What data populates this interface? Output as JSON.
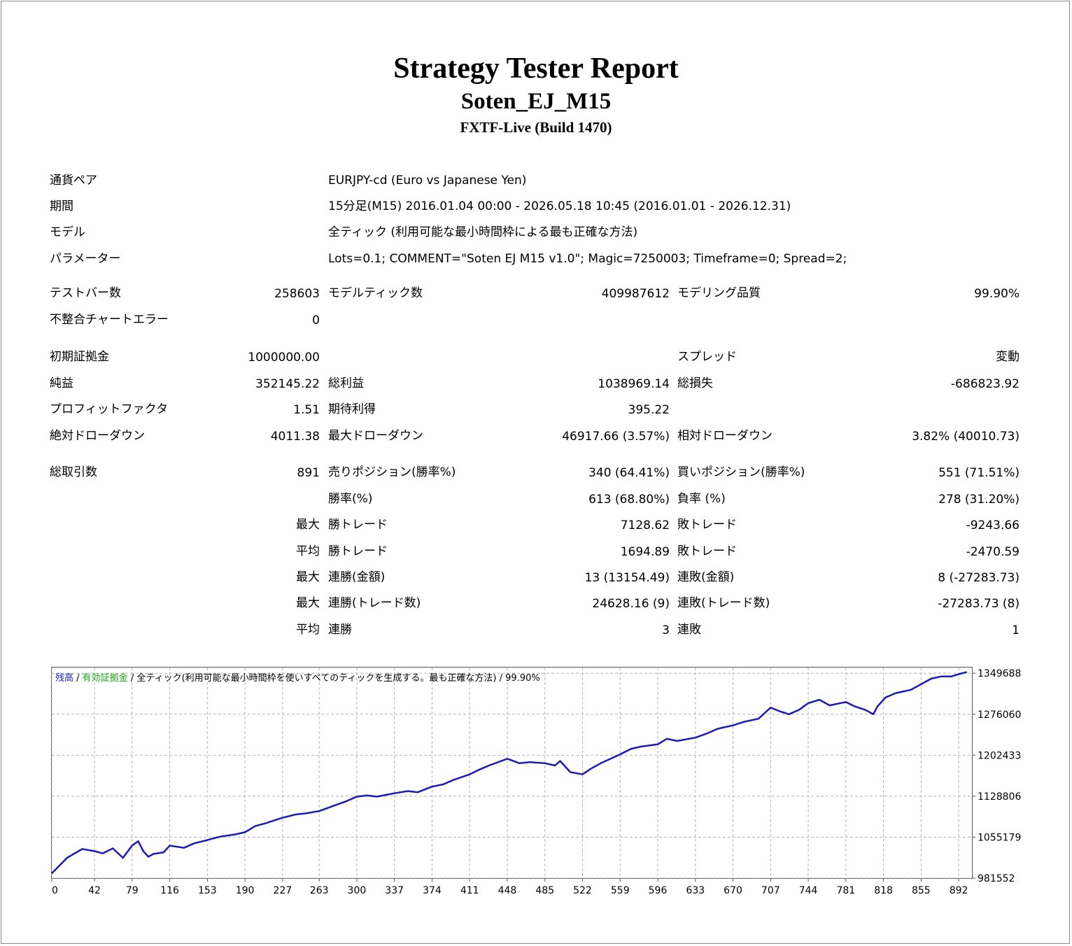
{
  "header": {
    "title": "Strategy Tester Report",
    "ea_name": "Soten_EJ_M15",
    "server": "FXTF-Live (Build 1470)"
  },
  "info": [
    {
      "label": "通貨ペア",
      "value": "EURJPY-cd (Euro vs Japanese Yen)"
    },
    {
      "label": "期間",
      "value": "15分足(M15) 2016.01.04 00:00 - 2026.05.18 10:45 (2016.01.01 - 2026.12.31)"
    },
    {
      "label": "モデル",
      "value": "全ティック (利用可能な最小時間枠による最も正確な方法)"
    },
    {
      "label": "パラメーター",
      "value": "Lots=0.1; COMMENT=\"Soten EJ M15 v1.0\"; Magic=7250003; Timeframe=0; Spread=2;"
    }
  ],
  "stats": {
    "bars_label": "テストバー数",
    "bars_value": "258603",
    "ticks_label": "モデルティック数",
    "ticks_value": "409987612",
    "quality_label": "モデリング品質",
    "quality_value": "99.90%",
    "mismatch_label": "不整合チャートエラー",
    "mismatch_value": "0",
    "deposit_label": "初期証拠金",
    "deposit_value": "1000000.00",
    "spread_label": "スプレッド",
    "spread_value": "変動",
    "net_label": "純益",
    "net_value": "352145.22",
    "gross_profit_label": "総利益",
    "gross_profit_value": "1038969.14",
    "gross_loss_label": "総損失",
    "gross_loss_value": "-686823.92",
    "pf_label": "プロフィットファクタ",
    "pf_value": "1.51",
    "expected_label": "期待利得",
    "expected_value": "395.22",
    "abs_dd_label": "絶対ドローダウン",
    "abs_dd_value": "4011.38",
    "max_dd_label": "最大ドローダウン",
    "max_dd_value": "46917.66 (3.57%)",
    "rel_dd_label": "相対ドローダウン",
    "rel_dd_value": "3.82% (40010.73)",
    "trades_label": "総取引数",
    "trades_value": "891",
    "short_label": "売りポジション(勝率%)",
    "short_value": "340 (64.41%)",
    "long_label": "買いポジション(勝率%)",
    "long_value": "551 (71.51%)",
    "win_rate_label": "勝率(%)",
    "win_rate_value": "613 (68.80%)",
    "loss_rate_label": "負率 (%)",
    "loss_rate_value": "278 (31.20%)",
    "max_prefix": "最大",
    "avg_prefix": "平均",
    "win_trade_label": "勝トレード",
    "loss_trade_label": "敗トレード",
    "max_win_value": "7128.62",
    "max_loss_value": "-9243.66",
    "avg_win_value": "1694.89",
    "avg_loss_value": "-2470.59",
    "consec_win_amount_label": "連勝(金額)",
    "consec_win_amount_value": "13 (13154.49)",
    "consec_loss_amount_label": "連敗(金額)",
    "consec_loss_amount_value": "8 (-27283.73)",
    "consec_win_count_label": "連勝(トレード数)",
    "consec_win_count_value": "24628.16 (9)",
    "consec_loss_count_label": "連敗(トレード数)",
    "consec_loss_count_value": "-27283.73 (8)",
    "avg_consec_win_label": "連勝",
    "avg_consec_win_value": "3",
    "avg_consec_loss_label": "連敗",
    "avg_consec_loss_value": "1"
  },
  "chart_data": {
    "type": "line",
    "legend": {
      "balance": "残高",
      "sep1": " / ",
      "margin": "有効証拠金",
      "sep2": " / ",
      "model": "全ティック(利用可能な最小時間枠を使いすべてのティックを生成する。最も正確な方法)",
      "sep3": " / ",
      "quality": "99.90%"
    },
    "colors": {
      "line": "#1a1ab4",
      "grid": "#b4b4b4"
    },
    "xlim": [
      0,
      905
    ],
    "ylim": [
      981552,
      1360000
    ],
    "x_ticks": [
      0,
      42,
      79,
      116,
      153,
      190,
      227,
      263,
      300,
      337,
      374,
      411,
      448,
      485,
      522,
      559,
      596,
      633,
      670,
      707,
      744,
      781,
      818,
      855,
      892
    ],
    "y_ticks": [
      981552,
      1055179,
      1128806,
      1202433,
      1276060,
      1349688
    ],
    "series": [
      {
        "x": [
          0,
          15,
          30,
          42,
          50,
          60,
          70,
          79,
          85,
          90,
          95,
          100,
          110,
          116,
          130,
          140,
          153,
          165,
          180,
          190,
          200,
          210,
          227,
          240,
          250,
          263,
          275,
          290,
          300,
          310,
          320,
          337,
          350,
          360,
          374,
          385,
          395,
          411,
          420,
          430,
          448,
          460,
          470,
          485,
          495,
          500,
          510,
          522,
          530,
          540,
          559,
          570,
          580,
          596,
          605,
          615,
          633,
          645,
          655,
          670,
          680,
          695,
          707,
          715,
          725,
          735,
          744,
          755,
          765,
          781,
          790,
          800,
          808,
          812,
          820,
          830,
          845,
          855,
          865,
          875,
          885,
          892,
          900
        ],
        "y": [
          990000,
          1018000,
          1034000,
          1030000,
          1026000,
          1035000,
          1018000,
          1040000,
          1048000,
          1030000,
          1020000,
          1025000,
          1028000,
          1040000,
          1036000,
          1044000,
          1050000,
          1056000,
          1060000,
          1064000,
          1075000,
          1080000,
          1090000,
          1096000,
          1098000,
          1102000,
          1110000,
          1120000,
          1128000,
          1130000,
          1128000,
          1134000,
          1138000,
          1136000,
          1146000,
          1150000,
          1158000,
          1168000,
          1176000,
          1184000,
          1196000,
          1188000,
          1190000,
          1188000,
          1184000,
          1192000,
          1172000,
          1168000,
          1178000,
          1188000,
          1204000,
          1214000,
          1218000,
          1222000,
          1232000,
          1228000,
          1234000,
          1242000,
          1250000,
          1256000,
          1262000,
          1268000,
          1288000,
          1282000,
          1276000,
          1284000,
          1296000,
          1302000,
          1292000,
          1298000,
          1290000,
          1284000,
          1276000,
          1290000,
          1306000,
          1314000,
          1320000,
          1330000,
          1340000,
          1344000,
          1344000,
          1348000,
          1352000
        ]
      }
    ]
  }
}
